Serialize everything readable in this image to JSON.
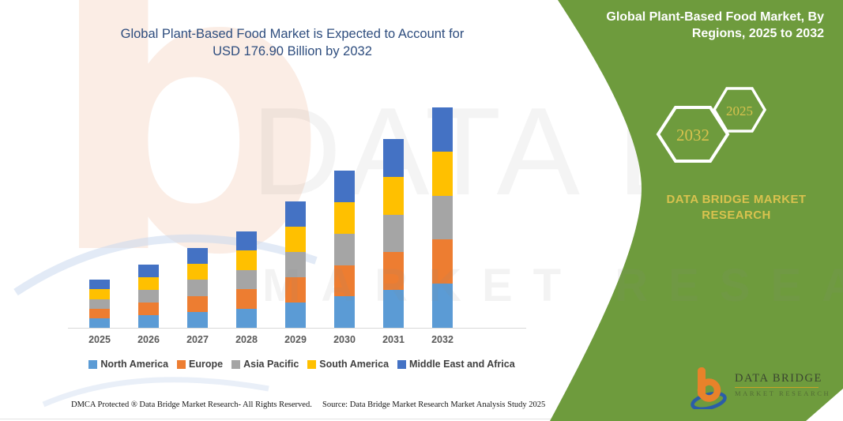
{
  "title": {
    "line1": "Global Plant-Based Food Market is Expected to Account for",
    "line2": "USD 176.90 Billion by 2032"
  },
  "chart_data": {
    "type": "bar",
    "stacked": true,
    "title": "Global Plant-Based Food Market is Expected to Account for USD 176.90 Billion by 2032",
    "unit": "USD Billion",
    "categories": [
      "2025",
      "2026",
      "2027",
      "2028",
      "2029",
      "2030",
      "2031",
      "2032"
    ],
    "series": [
      {
        "name": "North America",
        "color": "#5B9BD5",
        "values": [
          7.7,
          10.1,
          12.8,
          15.5,
          20.3,
          25.2,
          30.3,
          35.4
        ]
      },
      {
        "name": "Europe",
        "color": "#ED7D31",
        "values": [
          7.7,
          10.1,
          12.8,
          15.5,
          20.3,
          25.2,
          30.3,
          35.4
        ]
      },
      {
        "name": "Asia Pacific",
        "color": "#A5A5A5",
        "values": [
          7.7,
          10.1,
          12.8,
          15.5,
          20.3,
          25.2,
          30.3,
          35.4
        ]
      },
      {
        "name": "South America",
        "color": "#FFC000",
        "values": [
          7.7,
          10.1,
          12.8,
          15.5,
          20.3,
          25.2,
          30.3,
          35.4
        ]
      },
      {
        "name": "Middle East and Africa",
        "color": "#4472C4",
        "values": [
          7.7,
          10.1,
          12.8,
          15.5,
          20.3,
          25.2,
          30.3,
          35.4
        ]
      }
    ],
    "totals": [
      38.5,
      50.5,
      64.0,
      77.5,
      101.5,
      126.0,
      151.5,
      177.0
    ],
    "highlight_total_2032": "176.90",
    "ylim": [
      0,
      185
    ],
    "grid": false,
    "y_axis_shown": false,
    "legend_position": "bottom"
  },
  "panel": {
    "heading_line1": "Global Plant-Based Food Market, By",
    "heading_line2": "Regions, 2025 to 2032",
    "hexagon_large_label": "2032",
    "hexagon_small_label": "2025",
    "brand_line1": "DATA BRIDGE MARKET",
    "brand_line2": "RESEARCH",
    "colors": {
      "green": "#6E9B3D",
      "gold": "#D8C24E",
      "white": "#FFFFFF"
    }
  },
  "logo": {
    "name": "DATA BRIDGE",
    "subtext": "MARKET RESEARCH"
  },
  "footer": {
    "left": "DMCA Protected ® Data Bridge Market Research-  All Rights Reserved.",
    "right": "Source: Data Bridge Market Research  Market Analysis Study 2025"
  },
  "watermark": {
    "glyph": "b",
    "line1": "DATA BRIDGE",
    "line2": "MARKET RESEARCH"
  }
}
